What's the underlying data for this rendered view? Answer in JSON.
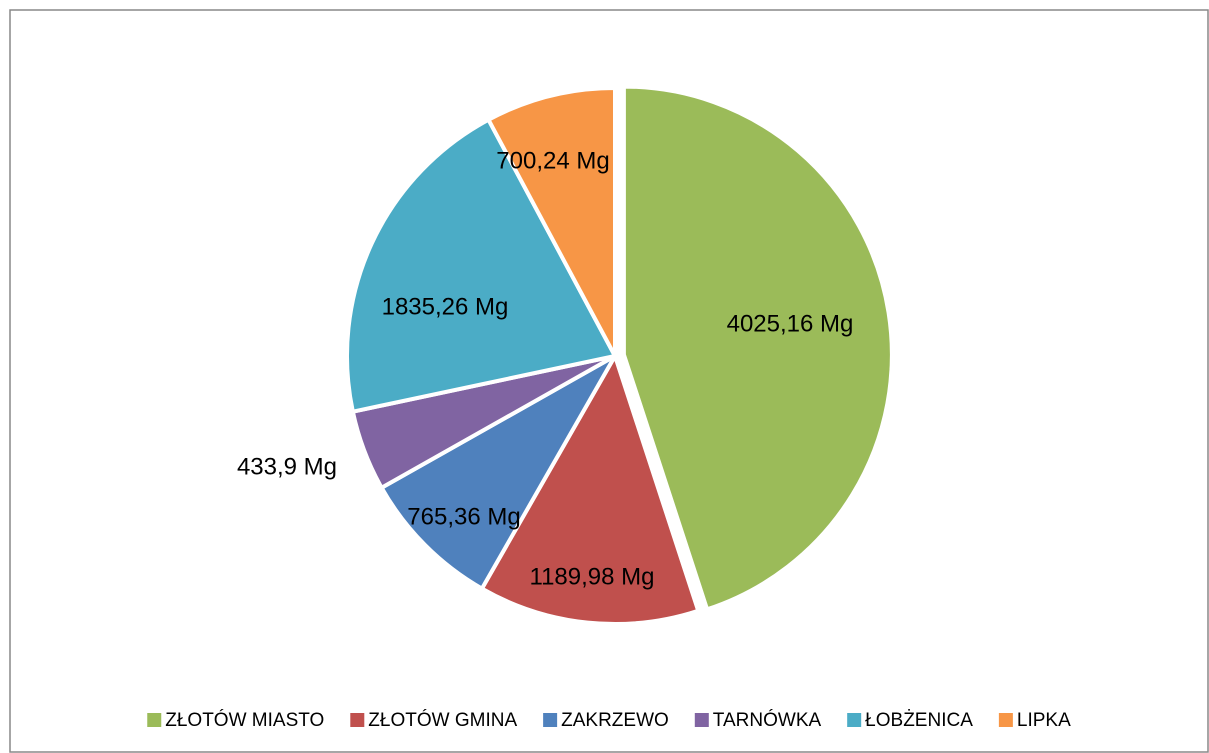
{
  "chart_data": {
    "type": "pie",
    "categories": [
      "ZŁOTÓW MIASTO",
      "ZŁOTÓW GMINA",
      "ZAKRZEWO",
      "TARNÓWKA",
      "ŁOBŻENICA",
      "LIPKA"
    ],
    "values": [
      4025.16,
      1189.98,
      765.36,
      433.9,
      1835.26,
      700.24
    ],
    "value_labels": [
      "4025,16 Mg",
      "1189,98 Mg",
      "765,36 Mg",
      "433,9 Mg",
      "1835,26 Mg",
      "700,24 Mg"
    ],
    "colors": [
      "#9bbb59",
      "#c0504d",
      "#4f81bd",
      "#8064a2",
      "#4bacc6",
      "#f79646"
    ],
    "legend": "bottom"
  }
}
